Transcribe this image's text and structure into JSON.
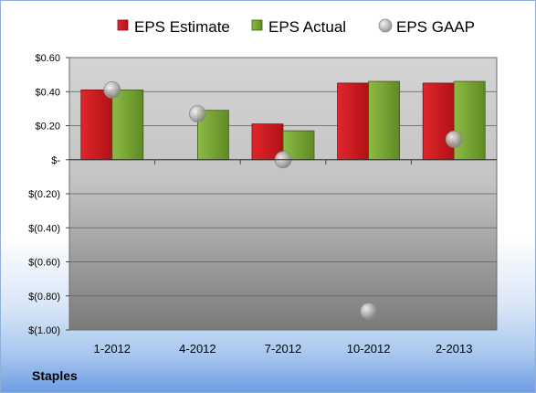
{
  "company": "Staples",
  "chart_data": {
    "type": "bar",
    "categories": [
      "1-2012",
      "4-2012",
      "7-2012",
      "10-2012",
      "2-2013"
    ],
    "series": [
      {
        "name": "EPS Estimate",
        "kind": "bar",
        "color": "#c0151b",
        "values": [
          0.41,
          null,
          0.21,
          0.45,
          0.45
        ]
      },
      {
        "name": "EPS Actual",
        "kind": "bar",
        "color": "#6f9a2c",
        "values": [
          0.41,
          0.29,
          0.17,
          0.46,
          0.46
        ]
      },
      {
        "name": "EPS GAAP",
        "kind": "scatter",
        "color": "#b8b8b8",
        "values": [
          0.41,
          0.27,
          0.0,
          -0.89,
          0.12
        ]
      }
    ],
    "ylim": [
      -1.0,
      0.6
    ],
    "yticks": [
      0.6,
      0.4,
      0.2,
      0.0,
      -0.2,
      -0.4,
      -0.6,
      -0.8,
      -1.0
    ],
    "ytick_labels": [
      "$0.60",
      "$0.40",
      "$0.20",
      "$-",
      "$(0.20)",
      "$(0.40)",
      "$(0.60)",
      "$(0.80)",
      "$(1.00)"
    ],
    "grid": true,
    "legend_position": "top"
  }
}
